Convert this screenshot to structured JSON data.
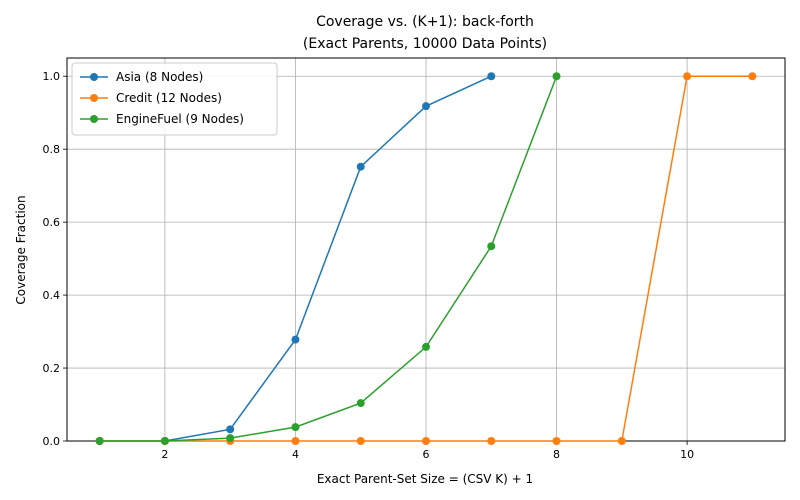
{
  "chart_data": {
    "type": "line",
    "title_line1": "Coverage vs. (K+1): back-forth",
    "title_line2": "(Exact Parents, 10000 Data Points)",
    "xlabel": "Exact Parent-Set Size = (CSV K) + 1",
    "ylabel": "Coverage Fraction",
    "xlim": [
      0.5,
      11.5
    ],
    "ylim": [
      0,
      1.05
    ],
    "xticks": [
      2,
      4,
      6,
      8,
      10
    ],
    "yticks": [
      0.0,
      0.2,
      0.4,
      0.6,
      0.8,
      1.0
    ],
    "grid": true,
    "legend_position": "top-left",
    "series": [
      {
        "name": "Asia (8 Nodes)",
        "color": "#1f77b4",
        "x": [
          1,
          2,
          3,
          4,
          5,
          6,
          7
        ],
        "y": [
          0.0,
          0.0,
          0.032,
          0.278,
          0.752,
          0.918,
          1.0
        ]
      },
      {
        "name": "Credit (12 Nodes)",
        "color": "#ff7f0e",
        "x": [
          1,
          2,
          3,
          4,
          5,
          6,
          7,
          8,
          9,
          10,
          11
        ],
        "y": [
          0.0,
          0.0,
          0.0,
          0.0,
          0.0,
          0.0,
          0.0,
          0.0,
          0.0,
          1.0,
          1.0
        ]
      },
      {
        "name": "EngineFuel (9 Nodes)",
        "color": "#2ca02c",
        "x": [
          1,
          2,
          3,
          4,
          5,
          6,
          7,
          8
        ],
        "y": [
          0.0,
          0.0,
          0.008,
          0.038,
          0.104,
          0.258,
          0.534,
          1.0
        ]
      }
    ]
  }
}
